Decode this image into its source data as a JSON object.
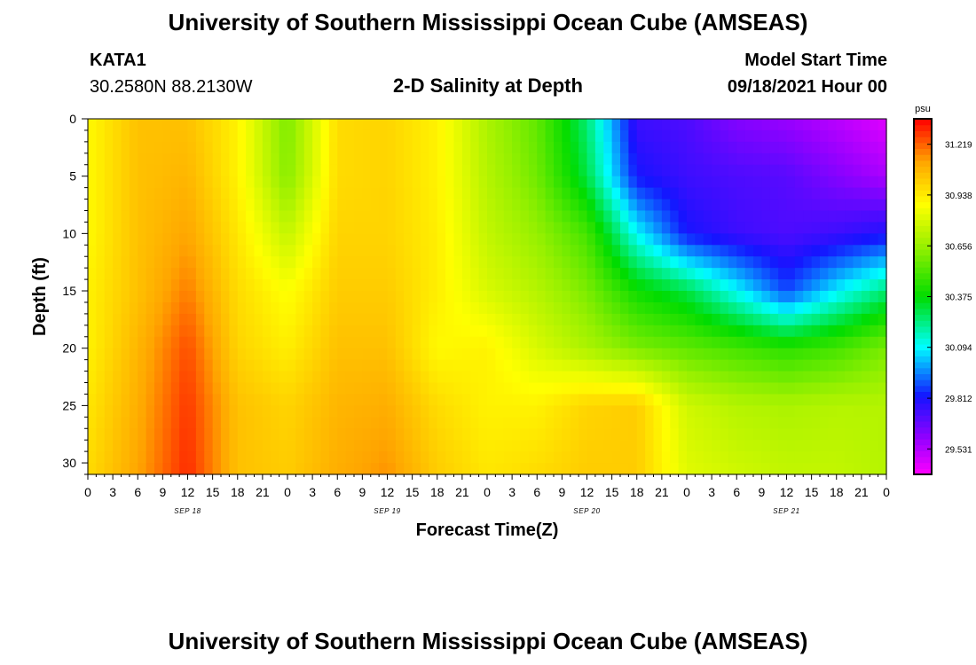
{
  "header": {
    "title": "University of Southern Mississippi Ocean Cube (AMSEAS)",
    "station": "KATA1",
    "coords": "30.2580N  88.2130W",
    "subtitle": "2-D Salinity at Depth",
    "model_start_label": "Model Start Time",
    "model_start_time": "09/18/2021 Hour 00"
  },
  "footer": {
    "title": "University of Southern Mississippi Ocean Cube (AMSEAS)"
  },
  "chart_data": {
    "type": "heatmap",
    "title": "2-D Salinity at Depth",
    "xlabel": "Forecast Time(Z)",
    "ylabel": "Depth (ft)",
    "x_range_hours": [
      0,
      96
    ],
    "y_range_ft": [
      0,
      31
    ],
    "x_tick_labels": [
      "0",
      "3",
      "6",
      "9",
      "12",
      "15",
      "18",
      "21",
      "0",
      "3",
      "6",
      "9",
      "12",
      "15",
      "18",
      "21",
      "0",
      "3",
      "6",
      "9",
      "12",
      "15",
      "18",
      "21",
      "0",
      "3",
      "6",
      "9",
      "12",
      "15",
      "18",
      "21",
      "0"
    ],
    "x_tick_hours": [
      0,
      3,
      6,
      9,
      12,
      15,
      18,
      21,
      24,
      27,
      30,
      33,
      36,
      39,
      42,
      45,
      48,
      51,
      54,
      57,
      60,
      63,
      66,
      69,
      72,
      75,
      78,
      81,
      84,
      87,
      90,
      93,
      96
    ],
    "day_labels": [
      {
        "label": "SEP 18",
        "hour": 12
      },
      {
        "label": "SEP 19",
        "hour": 36
      },
      {
        "label": "SEP 20",
        "hour": 60
      },
      {
        "label": "SEP 21",
        "hour": 84
      }
    ],
    "y_ticks": [
      0,
      5,
      10,
      15,
      20,
      25,
      30
    ],
    "colorbar": {
      "unit": "psu",
      "min": 29.39,
      "max": 31.36,
      "tick_values": [
        29.531,
        29.812,
        30.094,
        30.375,
        30.656,
        30.938,
        31.219
      ],
      "tick_labels": [
        "29.531",
        "29.812",
        "30.094",
        "30.375",
        "30.656",
        "30.938",
        "31.219"
      ]
    },
    "hours": [
      0,
      6,
      12,
      18,
      24,
      30,
      36,
      42,
      48,
      54,
      60,
      66,
      72,
      78,
      84,
      90,
      96
    ],
    "depths": [
      0,
      5,
      10,
      15,
      20,
      25,
      31
    ],
    "salinity": [
      [
        30.9,
        31.05,
        31.05,
        30.92,
        30.6,
        30.98,
        31.0,
        30.92,
        30.7,
        30.55,
        30.25,
        29.75,
        29.72,
        29.62,
        29.58,
        29.52,
        29.45
      ],
      [
        30.9,
        31.05,
        31.08,
        30.92,
        30.62,
        30.98,
        31.0,
        30.92,
        30.72,
        30.58,
        30.3,
        29.82,
        29.75,
        29.72,
        29.7,
        29.62,
        29.55
      ],
      [
        30.9,
        31.05,
        31.12,
        30.95,
        30.75,
        31.0,
        31.0,
        30.93,
        30.75,
        30.65,
        30.5,
        30.1,
        29.82,
        29.75,
        29.72,
        29.75,
        29.8
      ],
      [
        30.92,
        31.05,
        31.18,
        30.98,
        30.88,
        31.02,
        31.02,
        30.93,
        30.8,
        30.72,
        30.6,
        30.4,
        30.3,
        30.1,
        29.88,
        30.08,
        30.25
      ],
      [
        30.92,
        31.08,
        31.25,
        31.0,
        30.93,
        31.05,
        31.05,
        30.9,
        30.92,
        30.8,
        30.7,
        30.6,
        30.55,
        30.5,
        30.45,
        30.5,
        30.6
      ],
      [
        30.95,
        31.1,
        31.28,
        31.05,
        31.0,
        31.08,
        31.1,
        30.98,
        30.92,
        30.92,
        31.0,
        31.02,
        30.78,
        30.72,
        30.7,
        30.72,
        30.72
      ],
      [
        30.98,
        31.12,
        31.3,
        31.05,
        31.02,
        31.1,
        31.15,
        31.02,
        30.95,
        30.98,
        31.02,
        31.02,
        30.82,
        30.78,
        30.75,
        30.75,
        30.72
      ]
    ]
  }
}
